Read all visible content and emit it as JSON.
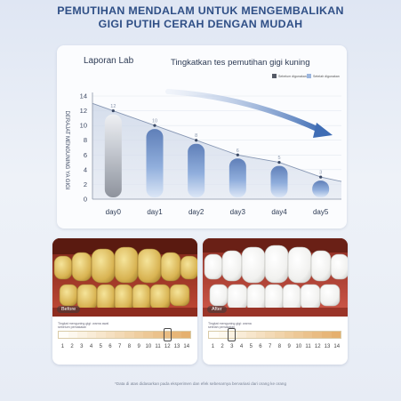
{
  "headline": {
    "line1": "PEMUTIHAN MENDALAM UNTUK MENGEMBALIKAN",
    "line2": "GIGI PUTIH CERAH DENGAN MUDAH"
  },
  "chart_data": {
    "type": "bar",
    "title": "Laporan Lab",
    "subtitle": "Tingkatkan tes pemutihan gigi kuning",
    "ylabel": "DERAJAT MENGUNING YA GIGI",
    "xlabel": "",
    "categories": [
      "day0",
      "day1",
      "day2",
      "day3",
      "day4",
      "day5"
    ],
    "values": [
      12,
      10,
      8,
      6,
      5,
      3
    ],
    "ylim": [
      0,
      14
    ],
    "yticks": [
      0,
      2,
      4,
      6,
      8,
      10,
      12,
      14
    ],
    "grid": true,
    "trend_line": true,
    "legend": {
      "position": "top-right",
      "items": [
        {
          "label": "Sebelum digunakan",
          "color": "#555a66"
        },
        {
          "label": "Setelah digunakan",
          "color": "#9db7df"
        }
      ]
    }
  },
  "before_card": {
    "tag": "Before",
    "note": "Tingkat menguning gigi: warna awal sebelum pemakaian",
    "selected": 12
  },
  "after_card": {
    "tag": "After",
    "note": "Tingkat menguning gigi: warna setelah pemakaian",
    "selected": 3
  },
  "shade_scale": [
    "1",
    "2",
    "3",
    "4",
    "5",
    "6",
    "7",
    "8",
    "9",
    "10",
    "11",
    "12",
    "13",
    "14"
  ],
  "shade_colors": [
    "#fffdf8",
    "#fdf8ee",
    "#fbf2e2",
    "#f9ecd7",
    "#f7e6cc",
    "#f5e0c1",
    "#f3dab6",
    "#f1d4ab",
    "#efcea0",
    "#edc896",
    "#ebc28c",
    "#e9bc82",
    "#e7b678",
    "#e5b06e"
  ],
  "footnote": "*Data di atas didasarkan pada eksperimen dan efek sebenarnya bervariasi dari orang ke orang"
}
